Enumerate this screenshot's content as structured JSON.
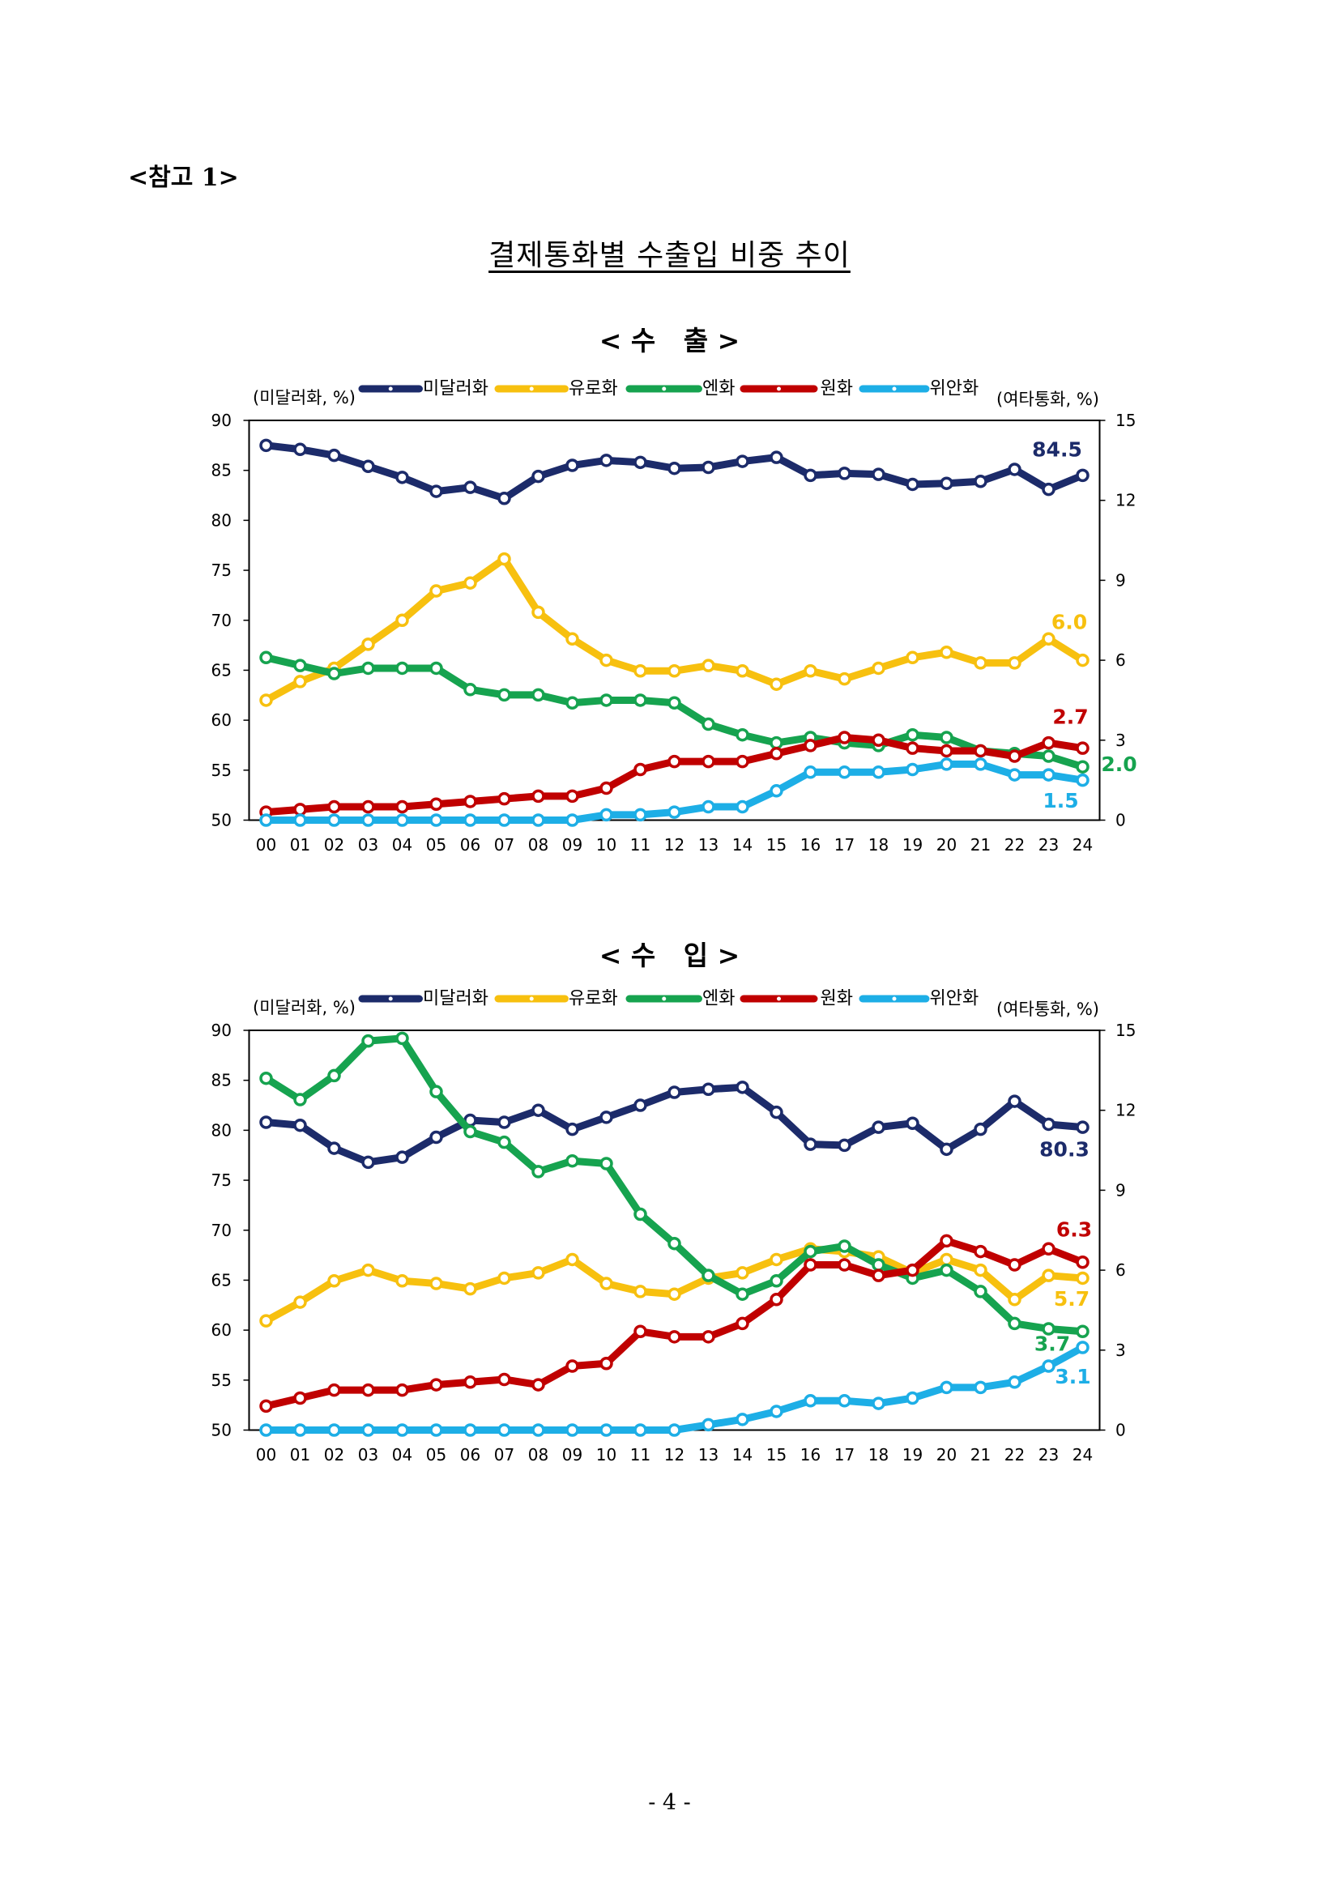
{
  "page": {
    "header": "<참고 1>",
    "title": "결제통화별 수출입 비중 추이",
    "page_number": "- 4 -"
  },
  "chart_data": [
    {
      "type": "line",
      "title": "< 수   출 >",
      "left_axis_label": "(미달러화, %)",
      "right_axis_label": "(여타통화, %)",
      "categories": [
        "00",
        "01",
        "02",
        "03",
        "04",
        "05",
        "06",
        "07",
        "08",
        "09",
        "10",
        "11",
        "12",
        "13",
        "14",
        "15",
        "16",
        "17",
        "18",
        "19",
        "20",
        "21",
        "22",
        "23",
        "24"
      ],
      "y_left": {
        "lim": [
          50,
          90
        ],
        "ticks": [
          50,
          55,
          60,
          65,
          70,
          75,
          80,
          85,
          90
        ]
      },
      "y_right": {
        "lim": [
          0,
          15
        ],
        "ticks": [
          0,
          3,
          6,
          9,
          12,
          15
        ]
      },
      "legend_position": "top",
      "grid": false,
      "markers": "circle",
      "series": [
        {
          "name": "미달러화",
          "axis": "left",
          "color": "#1c2b6a",
          "end_label": "84.5",
          "values": [
            87.5,
            87.1,
            86.5,
            85.4,
            84.3,
            82.9,
            83.3,
            82.2,
            84.4,
            85.5,
            86.0,
            85.8,
            85.2,
            85.3,
            85.9,
            86.3,
            84.5,
            84.7,
            84.6,
            83.6,
            83.7,
            83.9,
            85.1,
            83.1,
            84.5
          ]
        },
        {
          "name": "유로화",
          "axis": "right",
          "color": "#f7c00f",
          "end_label": "6.0",
          "values": [
            4.5,
            5.2,
            5.7,
            6.6,
            7.5,
            8.6,
            8.9,
            9.8,
            7.8,
            6.8,
            6.0,
            5.6,
            5.6,
            5.8,
            5.6,
            5.1,
            5.6,
            5.3,
            5.7,
            6.1,
            6.3,
            5.9,
            5.9,
            6.8,
            6.0
          ]
        },
        {
          "name": "엔화",
          "axis": "right",
          "color": "#16a34f",
          "end_label": "2.0",
          "values": [
            6.1,
            5.8,
            5.5,
            5.7,
            5.7,
            5.7,
            4.9,
            4.7,
            4.7,
            4.4,
            4.5,
            4.5,
            4.4,
            3.6,
            3.2,
            2.9,
            3.1,
            2.9,
            2.8,
            3.2,
            3.1,
            2.6,
            2.5,
            2.4,
            2.0
          ]
        },
        {
          "name": "원화",
          "axis": "right",
          "color": "#c00000",
          "end_label": "2.7",
          "values": [
            0.3,
            0.4,
            0.5,
            0.5,
            0.5,
            0.6,
            0.7,
            0.8,
            0.9,
            0.9,
            1.2,
            1.9,
            2.2,
            2.2,
            2.2,
            2.5,
            2.8,
            3.1,
            3.0,
            2.7,
            2.6,
            2.6,
            2.4,
            2.9,
            2.7
          ]
        },
        {
          "name": "위안화",
          "axis": "right",
          "color": "#1daee6",
          "end_label": "1.5",
          "values": [
            0.0,
            0.0,
            0.0,
            0.0,
            0.0,
            0.0,
            0.0,
            0.0,
            0.0,
            0.0,
            0.2,
            0.2,
            0.3,
            0.5,
            0.5,
            1.1,
            1.8,
            1.8,
            1.8,
            1.9,
            2.1,
            2.1,
            1.7,
            1.7,
            1.5
          ]
        }
      ]
    },
    {
      "type": "line",
      "title": "< 수   입 >",
      "left_axis_label": "(미달러화, %)",
      "right_axis_label": "(여타통화, %)",
      "categories": [
        "00",
        "01",
        "02",
        "03",
        "04",
        "05",
        "06",
        "07",
        "08",
        "09",
        "10",
        "11",
        "12",
        "13",
        "14",
        "15",
        "16",
        "17",
        "18",
        "19",
        "20",
        "21",
        "22",
        "23",
        "24"
      ],
      "y_left": {
        "lim": [
          50,
          90
        ],
        "ticks": [
          50,
          55,
          60,
          65,
          70,
          75,
          80,
          85,
          90
        ]
      },
      "y_right": {
        "lim": [
          0,
          15
        ],
        "ticks": [
          0,
          3,
          6,
          9,
          12,
          15
        ]
      },
      "legend_position": "top",
      "grid": false,
      "markers": "circle",
      "series": [
        {
          "name": "미달러화",
          "axis": "left",
          "color": "#1c2b6a",
          "end_label": "80.3",
          "values": [
            80.8,
            80.5,
            78.2,
            76.8,
            77.3,
            79.3,
            81.0,
            80.8,
            82.0,
            80.1,
            81.3,
            82.5,
            83.8,
            84.1,
            84.3,
            81.8,
            78.6,
            78.5,
            80.3,
            80.7,
            78.1,
            80.1,
            82.9,
            80.6,
            80.3
          ]
        },
        {
          "name": "유로화",
          "axis": "right",
          "color": "#f7c00f",
          "end_label": "5.7",
          "values": [
            4.1,
            4.8,
            5.6,
            6.0,
            5.6,
            5.5,
            5.3,
            5.7,
            5.9,
            6.4,
            5.5,
            5.2,
            5.1,
            5.7,
            5.9,
            6.4,
            6.8,
            6.7,
            6.5,
            5.9,
            6.4,
            6.0,
            4.9,
            5.8,
            5.7
          ]
        },
        {
          "name": "엔화",
          "axis": "right",
          "color": "#16a34f",
          "end_label": "3.7",
          "values": [
            13.2,
            12.4,
            13.3,
            14.6,
            14.7,
            12.7,
            11.2,
            10.8,
            9.7,
            10.1,
            10.0,
            8.1,
            7.0,
            5.8,
            5.1,
            5.6,
            6.7,
            6.9,
            6.2,
            5.7,
            6.0,
            5.2,
            4.0,
            3.8,
            3.7
          ]
        },
        {
          "name": "원화",
          "axis": "right",
          "color": "#c00000",
          "end_label": "6.3",
          "values": [
            0.9,
            1.2,
            1.5,
            1.5,
            1.5,
            1.7,
            1.8,
            1.9,
            1.7,
            2.4,
            2.5,
            3.7,
            3.5,
            3.5,
            4.0,
            4.9,
            6.2,
            6.2,
            5.8,
            6.0,
            7.1,
            6.7,
            6.2,
            6.8,
            6.3
          ]
        },
        {
          "name": "위안화",
          "axis": "right",
          "color": "#1daee6",
          "end_label": "3.1",
          "values": [
            0.0,
            0.0,
            0.0,
            0.0,
            0.0,
            0.0,
            0.0,
            0.0,
            0.0,
            0.0,
            0.0,
            0.0,
            0.0,
            0.2,
            0.4,
            0.7,
            1.1,
            1.1,
            1.0,
            1.2,
            1.6,
            1.6,
            1.8,
            2.4,
            3.1
          ]
        }
      ]
    }
  ]
}
